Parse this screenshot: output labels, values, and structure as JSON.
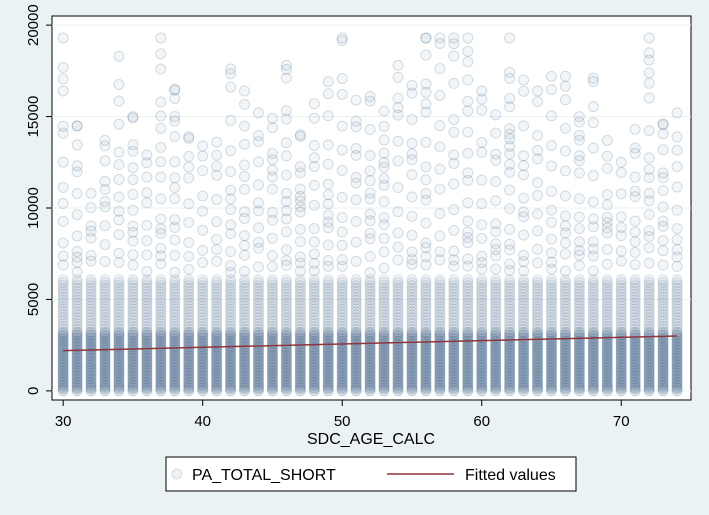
{
  "chart_data": {
    "type": "scatter",
    "xlabel": "SDC_AGE_CALC",
    "ylabel": "",
    "xlim": [
      29.2,
      75
    ],
    "ylim": [
      -500,
      20500
    ],
    "x_ticks": [
      30,
      40,
      50,
      60,
      70
    ],
    "y_ticks": [
      0,
      5000,
      10000,
      15000,
      20000
    ],
    "grid": true,
    "legend_placement": "bottom-center",
    "colors": {
      "background": "#eaf2f3",
      "plot_background": "#ffffff",
      "grid": "#eaf2f3",
      "points": "#1a476f",
      "fitted_line": "#90353b"
    },
    "series": [
      {
        "name": "PA_TOTAL_SHORT",
        "kind": "scatter",
        "x_values": [
          30,
          31,
          32,
          33,
          34,
          35,
          36,
          37,
          38,
          39,
          40,
          41,
          42,
          43,
          44,
          45,
          46,
          47,
          48,
          49,
          50,
          51,
          52,
          53,
          54,
          55,
          56,
          57,
          58,
          59,
          60,
          61,
          62,
          63,
          64,
          65,
          66,
          67,
          68,
          69,
          70,
          71,
          72,
          73,
          74
        ],
        "max_y": [
          19300,
          14500,
          10800,
          13700,
          18300,
          15000,
          12900,
          19300,
          16500,
          13900,
          13400,
          13600,
          17600,
          16400,
          15200,
          14900,
          17800,
          14000,
          15700,
          16900,
          19300,
          15900,
          16100,
          15300,
          17800,
          16700,
          19300,
          19300,
          19300,
          19300,
          16400,
          15100,
          19300,
          17000,
          16400,
          17200,
          17200,
          15000,
          17100,
          13700,
          12500,
          14300,
          19300,
          14600,
          15200
        ]
      },
      {
        "name": "Fitted values",
        "kind": "line",
        "x": [
          30,
          74
        ],
        "y": [
          2200,
          3000
        ]
      }
    ]
  },
  "legend": {
    "items": [
      "PA_TOTAL_SHORT",
      "Fitted values"
    ]
  }
}
